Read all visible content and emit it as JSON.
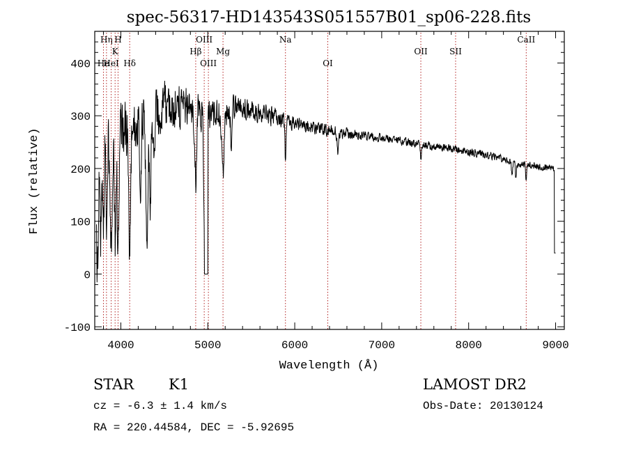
{
  "chart_data": {
    "type": "line",
    "title": "spec-56317-HD143543S051557B01_sp06-228.fits",
    "xlabel": "Wavelength (Å)",
    "ylabel": "Flux (relative)",
    "xlim": [
      3700,
      9100
    ],
    "ylim": [
      -105,
      460
    ],
    "xticks": [
      4000,
      5000,
      6000,
      7000,
      8000,
      9000
    ],
    "yticks": [
      -100,
      0,
      100,
      200,
      300,
      400
    ],
    "line_markers": [
      {
        "label": "Hη",
        "x": 3835,
        "row": 0
      },
      {
        "label": "H",
        "x": 3968,
        "row": 0
      },
      {
        "label": "K",
        "x": 3934,
        "row": 1
      },
      {
        "label": "He",
        "x": 3800,
        "row": 2
      },
      {
        "label": "HeI",
        "x": 3889,
        "row": 2
      },
      {
        "label": "Hδ",
        "x": 4102,
        "row": 2
      },
      {
        "label": "OIII",
        "x": 4959,
        "row": 0
      },
      {
        "label": "Hβ",
        "x": 4861,
        "row": 1
      },
      {
        "label": "Mg",
        "x": 5175,
        "row": 1
      },
      {
        "label": "OIII",
        "x": 5007,
        "row": 2
      },
      {
        "label": "Na",
        "x": 5893,
        "row": 0
      },
      {
        "label": "OI",
        "x": 6380,
        "row": 2
      },
      {
        "label": "OII",
        "x": 7450,
        "row": 1
      },
      {
        "label": "SII",
        "x": 7850,
        "row": 1
      },
      {
        "label": "CaII",
        "x": 8662,
        "row": 0
      }
    ],
    "continuum": [
      [
        3720,
        180
      ],
      [
        3800,
        240
      ],
      [
        3950,
        260
      ],
      [
        4200,
        285
      ],
      [
        4500,
        320
      ],
      [
        4800,
        315
      ],
      [
        5000,
        300
      ],
      [
        5300,
        315
      ],
      [
        5600,
        305
      ],
      [
        6000,
        285
      ],
      [
        6400,
        270
      ],
      [
        7000,
        258
      ],
      [
        7500,
        245
      ],
      [
        8000,
        232
      ],
      [
        8300,
        222
      ],
      [
        8600,
        208
      ],
      [
        8900,
        202
      ],
      [
        9000,
        198
      ]
    ],
    "features": [
      {
        "x": 3730,
        "depth": 180,
        "w": 10
      },
      {
        "x": 3770,
        "depth": 150,
        "w": 8
      },
      {
        "x": 3798,
        "depth": 160,
        "w": 8
      },
      {
        "x": 3835,
        "depth": 150,
        "w": 7
      },
      {
        "x": 3889,
        "depth": 220,
        "w": 9
      },
      {
        "x": 3934,
        "depth": 200,
        "w": 8
      },
      {
        "x": 3968,
        "depth": 240,
        "w": 9
      },
      {
        "x": 4102,
        "depth": 230,
        "w": 10
      },
      {
        "x": 4225,
        "depth": 200,
        "w": 9
      },
      {
        "x": 4300,
        "depth": 230,
        "w": 12
      },
      {
        "x": 4340,
        "depth": 150,
        "w": 9
      },
      {
        "x": 4383,
        "depth": 130,
        "w": 8
      },
      {
        "x": 4861,
        "depth": 140,
        "w": 10
      },
      {
        "x": 4960,
        "depth": 250,
        "w": 8
      },
      {
        "x": 5175,
        "depth": 110,
        "w": 14
      },
      {
        "x": 5270,
        "depth": 60,
        "w": 9
      },
      {
        "x": 5893,
        "depth": 70,
        "w": 7
      },
      {
        "x": 6495,
        "depth": 45,
        "w": 7
      },
      {
        "x": 7450,
        "depth": 25,
        "w": 8
      },
      {
        "x": 8498,
        "depth": 28,
        "w": 6
      },
      {
        "x": 8542,
        "depth": 32,
        "w": 6
      },
      {
        "x": 8662,
        "depth": 30,
        "w": 6
      }
    ],
    "gaps": [
      [
        4960,
        5000,
        0
      ]
    ],
    "noise": [
      [
        3700,
        55
      ],
      [
        4600,
        38
      ],
      [
        5200,
        22
      ],
      [
        6000,
        12
      ],
      [
        7000,
        7
      ],
      [
        9100,
        6
      ]
    ]
  },
  "info": {
    "class": "STAR",
    "subclass": "K1",
    "survey": "LAMOST DR2",
    "redshift": "cz = -6.3 ± 1.4 km/s",
    "obs_date": "Obs-Date: 20130124",
    "coords": "RA = 220.44584, DEC =  -5.92695"
  }
}
